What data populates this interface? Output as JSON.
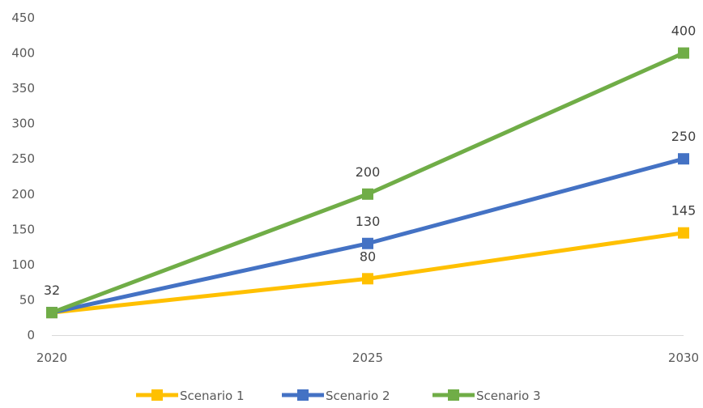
{
  "chart_data": {
    "type": "line",
    "x": [
      "2020",
      "2025",
      "2030"
    ],
    "ylim": [
      0,
      450
    ],
    "yticks": [
      "0",
      "50",
      "100",
      "150",
      "200",
      "250",
      "300",
      "350",
      "400",
      "450"
    ],
    "grid": false,
    "legend_position": "bottom",
    "series": [
      {
        "name": "Scenario 1",
        "color": "#FFC000",
        "values": [
          32,
          80,
          145
        ],
        "labels": [
          "",
          "80",
          "145"
        ]
      },
      {
        "name": "Scenario 2",
        "color": "#4472C4",
        "values": [
          32,
          130,
          250
        ],
        "labels": [
          "",
          "130",
          "250"
        ]
      },
      {
        "name": "Scenario 3",
        "color": "#70AD47",
        "values": [
          32,
          200,
          400
        ],
        "labels": [
          "32",
          "200",
          "400"
        ]
      }
    ]
  }
}
